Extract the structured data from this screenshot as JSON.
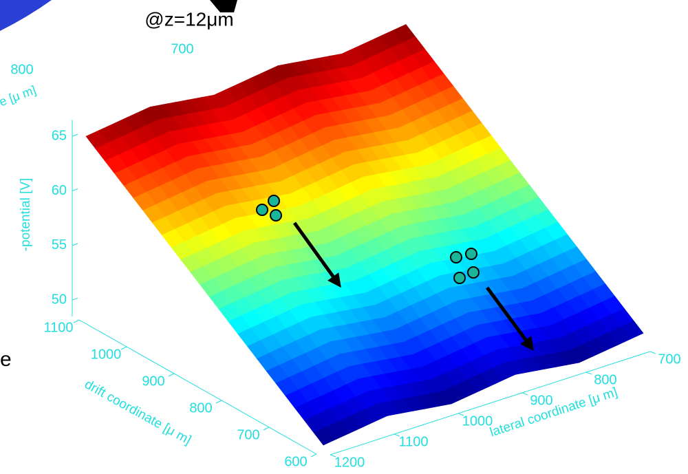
{
  "chart_data": {
    "type": "surface",
    "title": "@z=12μm",
    "xlabel": "drift coordinate [μ m]",
    "ylabel": "lateral coordinate [μ m]",
    "zlabel": "-potential [V]",
    "x": [
      600,
      700,
      800,
      900,
      1000,
      1100
    ],
    "y": [
      700,
      800,
      900,
      1000,
      1100,
      1200
    ],
    "z": [
      [
        49.8,
        49.0,
        49.8,
        49.0,
        49.8,
        49.0
      ],
      [
        53.0,
        52.2,
        53.0,
        52.2,
        53.0,
        52.2
      ],
      [
        56.2,
        55.4,
        56.2,
        55.4,
        56.2,
        55.4
      ],
      [
        59.4,
        58.6,
        59.4,
        58.6,
        59.4,
        58.6
      ],
      [
        62.6,
        61.8,
        62.6,
        61.8,
        62.6,
        61.8
      ],
      [
        65.8,
        65.0,
        65.8,
        65.0,
        65.8,
        65.0
      ]
    ],
    "xlim": [
      600,
      1100
    ],
    "xticks": [
      600,
      700,
      800,
      900,
      1000,
      1100
    ],
    "ylim": [
      700,
      1200
    ],
    "yticks": [
      700,
      800,
      900,
      1000,
      1100,
      1200
    ],
    "zlim": [
      48.5,
      66.5
    ],
    "zticks": [
      50,
      55,
      60,
      65
    ],
    "colormap": "jet",
    "axis_color": "#22dede"
  },
  "fragments": {
    "inset_ticks": [
      700,
      800
    ],
    "inset_label": "e [μ m]",
    "side_text": "e"
  }
}
